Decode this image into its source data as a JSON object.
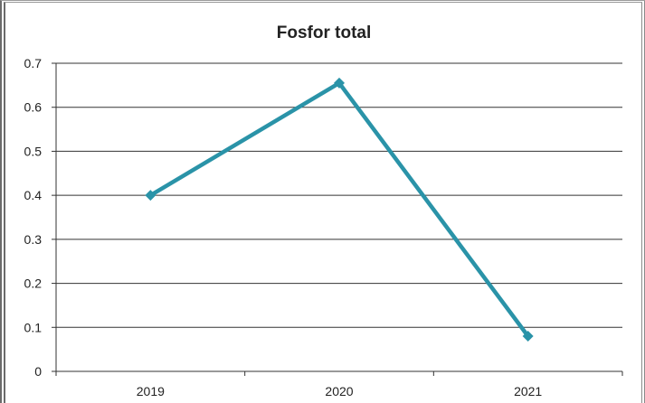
{
  "chart_data": {
    "type": "line",
    "title": "Fosfor total",
    "xlabel": "",
    "ylabel": "",
    "categories": [
      "2019",
      "2020",
      "2021"
    ],
    "series": [
      {
        "values": [
          0.4,
          0.655,
          0.08
        ],
        "color": "#2a93a8",
        "marker": "diamond"
      }
    ],
    "ylim": [
      0,
      0.7
    ],
    "yticks": [
      "0",
      "0.1",
      "0.2",
      "0.3",
      "0.4",
      "0.5",
      "0.6",
      "0.7"
    ],
    "grid": true,
    "legend": "none"
  }
}
